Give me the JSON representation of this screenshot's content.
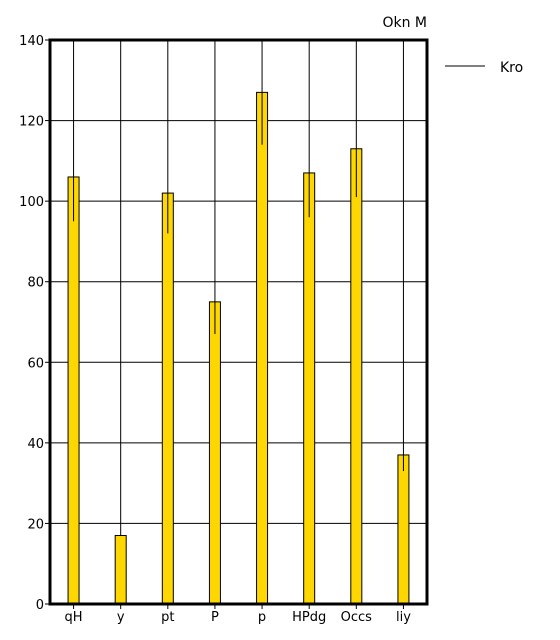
{
  "chart_data": {
    "type": "bar",
    "title": "Okn M",
    "categories": [
      "qH",
      "y",
      "pt",
      "P",
      "p",
      "HPdg",
      "Occs",
      "liy"
    ],
    "series": [
      {
        "name": "Kro",
        "values": [
          106,
          17,
          102,
          75,
          127,
          107,
          113,
          37
        ],
        "error_low": [
          95,
          17,
          92,
          67,
          114,
          96,
          101,
          33
        ],
        "color": "#FFD700"
      }
    ],
    "ylim": [
      0,
      140
    ],
    "yticks": [
      0,
      20,
      40,
      60,
      80,
      100,
      120,
      140
    ],
    "grid": true,
    "legend_position": "top-right outside",
    "xlabel": "",
    "ylabel": ""
  }
}
